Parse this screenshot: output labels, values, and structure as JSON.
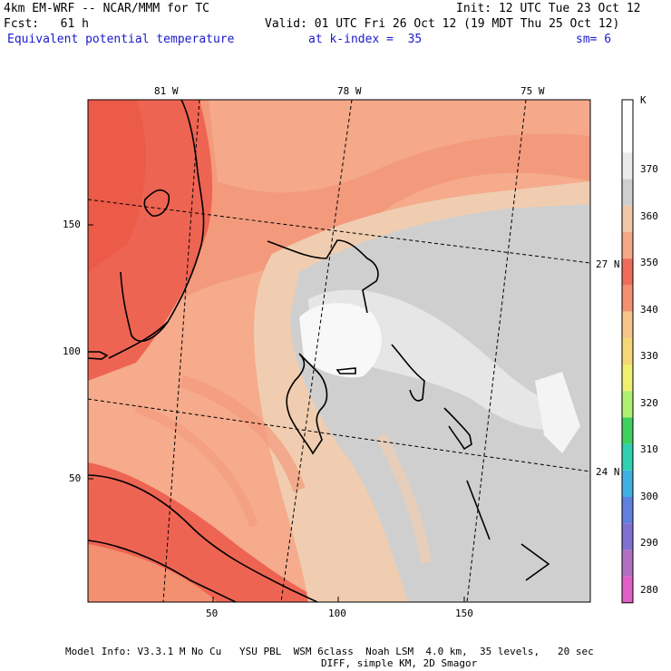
{
  "header": {
    "model": "4km EM-WRF -- NCAR/MMM for TC",
    "init": "Init: 12 UTC Tue 23 Oct 12",
    "fcst": "Fcst:   61 h",
    "valid": "Valid: 01 UTC Fri 26 Oct 12 (19 MDT Thu 25 Oct 12)",
    "field": "Equivalent potential temperature",
    "kindex": "at k-index =  35",
    "sm": "sm= 6"
  },
  "axes": {
    "top_lon": [
      "81 W",
      "78 W",
      "75 W"
    ],
    "right_lat": [
      "27 N",
      "24 N"
    ],
    "left_ticks": [
      "150",
      "100",
      "50"
    ],
    "bottom_ticks": [
      "50",
      "100",
      "150"
    ]
  },
  "legend": {
    "unit": "K",
    "labels": [
      "370",
      "360",
      "350",
      "340",
      "330",
      "320",
      "310",
      "300",
      "290",
      "280"
    ],
    "colors": [
      "#ffffff",
      "#ffffff",
      "#ebebeb",
      "#cfcfcf",
      "#f0c8a8",
      "#f4a888",
      "#ee6d5a",
      "#f39070",
      "#f6c488",
      "#f4d878",
      "#f0f070",
      "#b0f070",
      "#40d060",
      "#30d0b0",
      "#40b0e0",
      "#6080e0",
      "#8070d0",
      "#b070c0",
      "#e060c8"
    ]
  },
  "footer": {
    "line1": "Model Info: V3.3.1 M No Cu   YSU PBL  WSM 6class  Noah LSM  4.0 km,  35 levels,   20 sec",
    "line2": "DIFF, simple KM, 2D Smagor"
  }
}
